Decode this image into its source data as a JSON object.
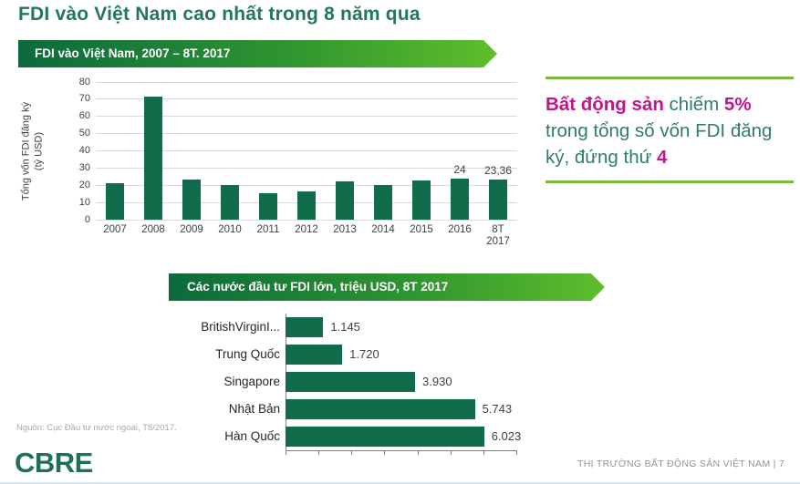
{
  "page": {
    "title": "FDI vào Việt Nam cao nhất trong 8 năm qua",
    "source_note": "Nguồn: Cục Đầu tư nước ngoài, T8/2017.",
    "logo": "CBRE",
    "footer": "THỊ TRƯỜNG BẤT ĐỘNG SẢN VIỆT NAM | 7"
  },
  "insight": {
    "part1": "Bất động sản",
    "part2": " chiếm ",
    "part3": "5%",
    "part4": " trong tổng số vốn FDI đăng ký, đứng thứ ",
    "part5": "4"
  },
  "colors": {
    "brand_dark_green": "#116C49",
    "banner_gradient_start": "#0B6A3C",
    "banner_gradient_end": "#5FBE2B",
    "accent_magenta": "#C4148C",
    "text_teal": "#2E7C6C",
    "insight_rule_green": "#7CB83E"
  },
  "chart_data": [
    {
      "type": "bar",
      "banner": "FDI vào Việt Nam, 2007 – 8T. 2017",
      "ylabel_line1": "Tổng vốn FDI đăng ký",
      "ylabel_line2": "(tỷ USD)",
      "ylim": [
        0,
        80
      ],
      "ytick_step": 10,
      "grid": true,
      "categories": [
        "2007",
        "2008",
        "2009",
        "2010",
        "2011",
        "2012",
        "2013",
        "2014",
        "2015",
        "2016",
        "8T 2017"
      ],
      "values": [
        21.3,
        71.7,
        23.1,
        19.9,
        15.6,
        16.3,
        22.4,
        20.2,
        23.0,
        24,
        23.36
      ],
      "data_labels": {
        "2016": "24",
        "8T 2017": "23,36"
      },
      "bar_color": "#116C49"
    },
    {
      "type": "horizontal-bar",
      "banner": "Các nước đầu tư FDI lớn, triệu USD, 8T 2017",
      "categories": [
        "BritishVirginI...",
        "Trung Quốc",
        "Singapore",
        "Nhật Bản",
        "Hàn Quốc"
      ],
      "values": [
        1145,
        1720,
        3930,
        5743,
        6023
      ],
      "value_labels": [
        "1.145",
        "1.720",
        "3.930",
        "5.743",
        "6.023"
      ],
      "xlim": [
        0,
        7000
      ],
      "xtick_step": 1000,
      "bar_color": "#116C49"
    }
  ]
}
